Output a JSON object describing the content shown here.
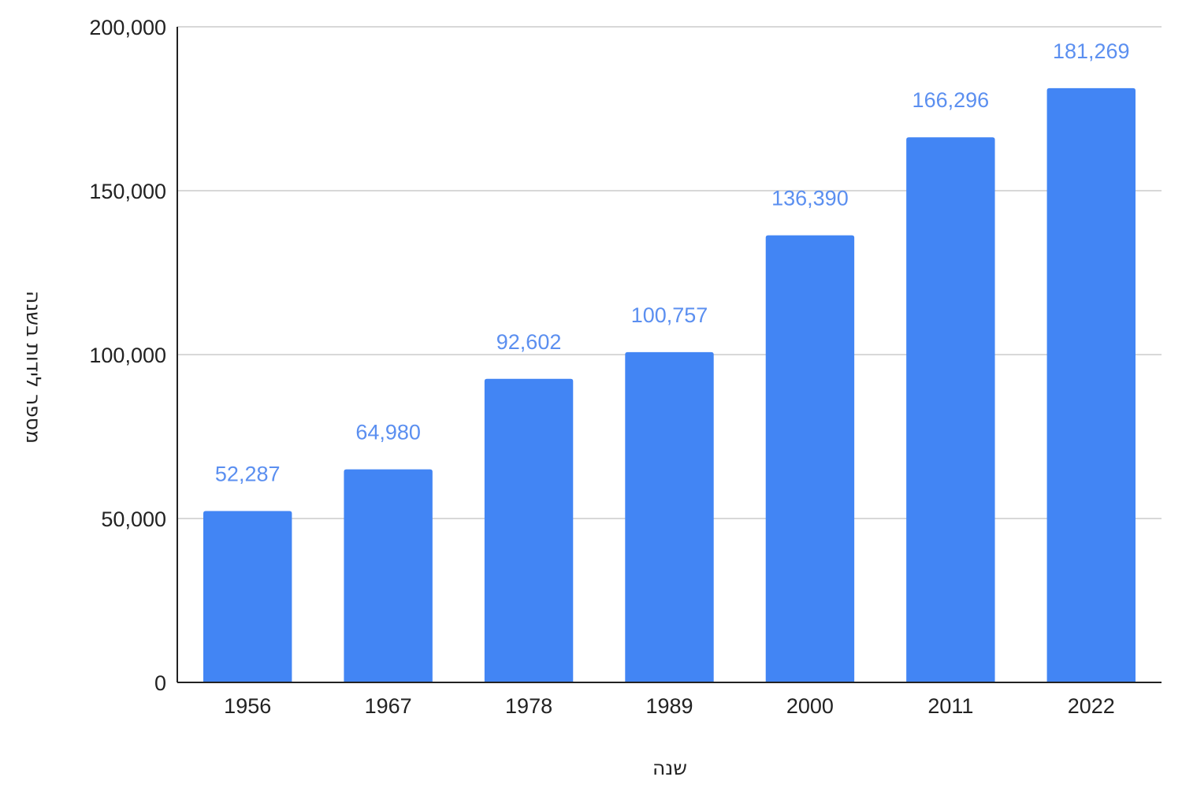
{
  "chart_data": {
    "type": "bar",
    "categories": [
      "1956",
      "1967",
      "1978",
      "1989",
      "2000",
      "2011",
      "2022"
    ],
    "values": [
      52287,
      64980,
      92602,
      100757,
      136390,
      166296,
      181269
    ],
    "value_labels": [
      "52,287",
      "64,980",
      "92,602",
      "100,757",
      "136,390",
      "166,296",
      "181,269"
    ],
    "ylim": [
      0,
      200000
    ],
    "yticks": [
      0,
      50000,
      100000,
      150000,
      200000
    ],
    "ytick_labels": [
      "0",
      "50,000",
      "100,000",
      "150,000",
      "200,000"
    ],
    "xlabel": "שנה",
    "ylabel": "מספר לידות בשנה",
    "grid": true,
    "bar_color": "#4285f4",
    "label_color": "#5b8ff0"
  }
}
